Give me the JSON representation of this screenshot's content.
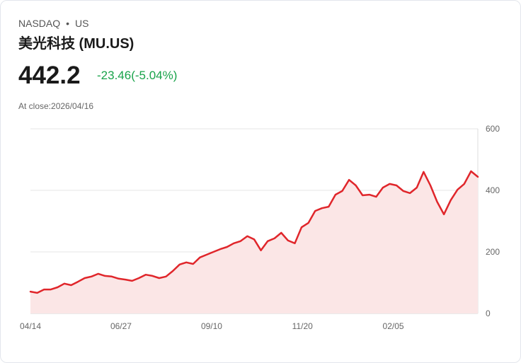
{
  "header": {
    "exchange": "NASDAQ",
    "separator": "•",
    "market": "US",
    "title": "美光科技 (MU.US)",
    "price": "442.2",
    "change": "-23.46(-5.04%)",
    "close_label": "At close:2026/04/16"
  },
  "colors": {
    "line": "#e0262b",
    "fill": "#fbe6e6",
    "change": "#18a34a",
    "grid": "#e6e6e6"
  },
  "chart_data": {
    "type": "area",
    "title": "",
    "xlabel": "",
    "ylabel": "",
    "ylim": [
      0,
      600
    ],
    "yticks": [
      0,
      200,
      400,
      600
    ],
    "ytick_labels": [
      "0",
      "200",
      "400",
      "600"
    ],
    "xtick_labels": [
      "04/14",
      "06/27",
      "09/10",
      "11/20",
      "02/05"
    ],
    "xtick_positions": [
      0,
      0.2025,
      0.405,
      0.608,
      0.811
    ],
    "grid": true,
    "series": [
      {
        "name": "MU.US",
        "values": [
          71,
          67,
          78,
          78,
          85,
          97,
          92,
          103,
          115,
          120,
          129,
          122,
          120,
          113,
          110,
          106,
          115,
          126,
          122,
          115,
          120,
          138,
          159,
          166,
          161,
          182,
          191,
          200,
          209,
          216,
          228,
          235,
          251,
          241,
          205,
          235,
          244,
          262,
          237,
          228,
          280,
          294,
          333,
          342,
          347,
          386,
          398,
          434,
          416,
          384,
          386,
          379,
          409,
          421,
          416,
          398,
          391,
          409,
          460,
          416,
          363,
          322,
          368,
          402,
          421,
          462,
          444
        ]
      }
    ]
  }
}
